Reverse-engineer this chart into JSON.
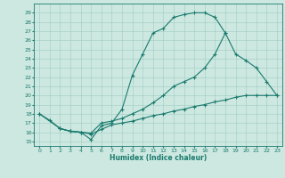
{
  "xlabel": "Humidex (Indice chaleur)",
  "ylabel": "",
  "xlim": [
    -0.5,
    23.5
  ],
  "ylim": [
    14.5,
    30
  ],
  "xticks": [
    0,
    1,
    2,
    3,
    4,
    5,
    6,
    7,
    8,
    9,
    10,
    11,
    12,
    13,
    14,
    15,
    16,
    17,
    18,
    19,
    20,
    21,
    22,
    23
  ],
  "yticks": [
    15,
    16,
    17,
    18,
    19,
    20,
    21,
    22,
    23,
    24,
    25,
    26,
    27,
    28,
    29
  ],
  "bg_color": "#cce8e0",
  "line_color": "#1a7a6e",
  "curve1_x": [
    0,
    1,
    2,
    3,
    4,
    5,
    6,
    7,
    8,
    9,
    10,
    11,
    12,
    13,
    14,
    15,
    16,
    17,
    18
  ],
  "curve1_y": [
    18.0,
    17.3,
    16.4,
    16.1,
    16.0,
    15.2,
    16.7,
    17.0,
    18.5,
    22.2,
    24.5,
    26.8,
    27.3,
    28.5,
    28.8,
    29.0,
    29.0,
    28.5,
    26.8
  ],
  "curve2_x": [
    0,
    2,
    3,
    4,
    5,
    6,
    7,
    8,
    9,
    10,
    11,
    12,
    13,
    14,
    15,
    16,
    17,
    18,
    19,
    20,
    21,
    22,
    23
  ],
  "curve2_y": [
    18.0,
    16.4,
    16.1,
    16.0,
    15.9,
    17.0,
    17.2,
    17.5,
    18.0,
    18.5,
    19.2,
    20.0,
    21.0,
    21.5,
    22.0,
    23.0,
    24.5,
    26.8,
    24.5,
    23.8,
    23.0,
    21.5,
    20.0
  ],
  "curve3_x": [
    2,
    3,
    4,
    5,
    6,
    7,
    8,
    9,
    10,
    11,
    12,
    13,
    14,
    15,
    16,
    17,
    18,
    19,
    20,
    21,
    22,
    23
  ],
  "curve3_y": [
    16.4,
    16.1,
    16.0,
    15.8,
    16.3,
    16.8,
    17.0,
    17.2,
    17.5,
    17.8,
    18.0,
    18.3,
    18.5,
    18.8,
    19.0,
    19.3,
    19.5,
    19.8,
    20.0,
    20.0,
    20.0,
    20.0
  ]
}
